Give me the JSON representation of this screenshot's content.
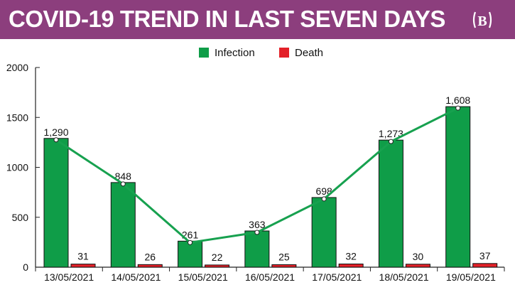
{
  "header": {
    "title": "COVID-19 TREND IN LAST SEVEN DAYS",
    "logo_icon": "bangladesh-post-logo-icon",
    "banner_color": "#8c3e7d"
  },
  "chart_data": {
    "type": "bar",
    "title": "COVID-19 TREND IN LAST SEVEN DAYS",
    "categories": [
      "13/05/2021",
      "14/05/2021",
      "15/05/2021",
      "16/05/2021",
      "17/05/2021",
      "18/05/2021",
      "19/05/2021"
    ],
    "series": [
      {
        "name": "Infection",
        "values": [
          1290,
          848,
          261,
          363,
          698,
          1273,
          1608
        ],
        "labels": [
          "1,290",
          "848",
          "261",
          "363",
          "698",
          "1,273",
          "1,608"
        ],
        "color": "#0f9d48"
      },
      {
        "name": "Death",
        "values": [
          31,
          26,
          22,
          25,
          32,
          30,
          37
        ],
        "labels": [
          "31",
          "26",
          "22",
          "25",
          "32",
          "30",
          "37"
        ],
        "color": "#e32028"
      }
    ],
    "trend_line": {
      "series": "Infection",
      "values": [
        1290,
        848,
        261,
        363,
        698,
        1273,
        1608
      ]
    },
    "ylim": [
      0,
      2000
    ],
    "yticks": [
      "0",
      "500",
      "1000",
      "1500",
      "2000"
    ],
    "xlabel": "",
    "ylabel": "",
    "grid": false,
    "legend_position": "top-center"
  }
}
